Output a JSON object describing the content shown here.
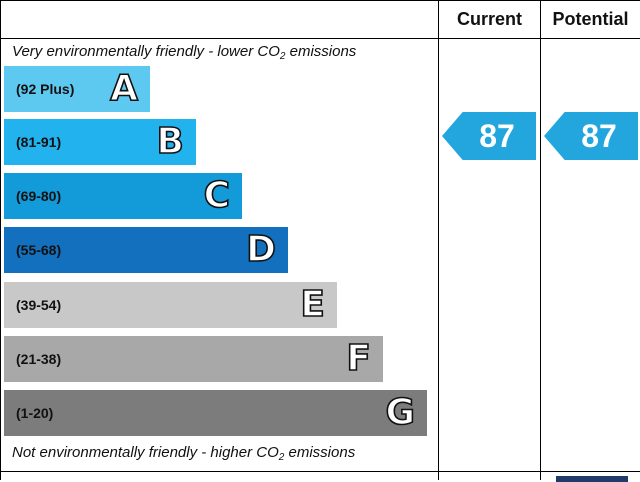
{
  "header": {
    "current_label": "Current",
    "potential_label": "Potential"
  },
  "captions": {
    "top_prefix": "Very environmentally friendly - lower CO",
    "top_sub": "2",
    "top_suffix": " emissions",
    "bottom_prefix": "Not environmentally friendly - higher CO",
    "bottom_sub": "2",
    "bottom_suffix": " emissions"
  },
  "chart_data": {
    "type": "bar",
    "bands": [
      {
        "range": "(92 Plus)",
        "letter": "A",
        "color": "#5dc8f0"
      },
      {
        "range": "(81-91)",
        "letter": "B",
        "color": "#22b2ee"
      },
      {
        "range": "(69-80)",
        "letter": "C",
        "color": "#139ad8"
      },
      {
        "range": "(55-68)",
        "letter": "D",
        "color": "#1270bf"
      },
      {
        "range": "(39-54)",
        "letter": "E",
        "color": "#c8c8c8"
      },
      {
        "range": "(21-38)",
        "letter": "F",
        "color": "#a8a8a8"
      },
      {
        "range": "(1-20)",
        "letter": "G",
        "color": "#7c7c7c"
      }
    ],
    "current": {
      "value": "87",
      "band": "B"
    },
    "potential": {
      "value": "87",
      "band": "B"
    },
    "arrow_color": "#22a6dd"
  }
}
